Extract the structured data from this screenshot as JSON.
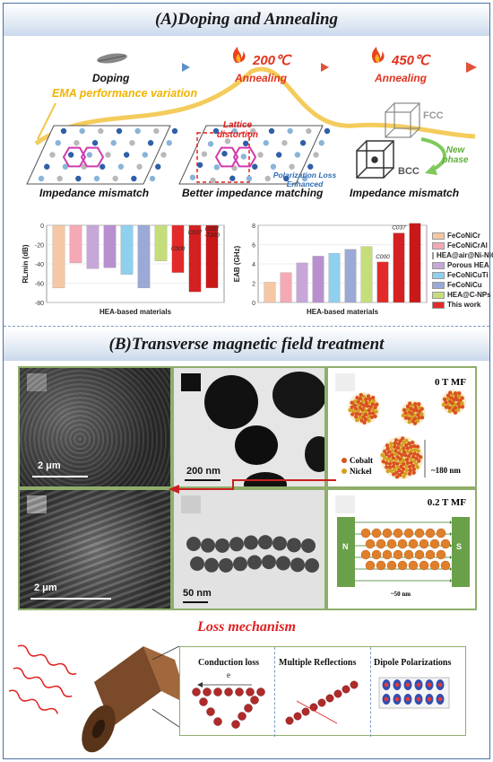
{
  "section_a": {
    "title": "(A)Doping and Annealing",
    "stages": [
      {
        "label": "Doping"
      },
      {
        "label": "Annealing",
        "temperature": "200℃"
      },
      {
        "label": "Annealing",
        "temperature": "450℃"
      }
    ],
    "ema_label": "EMA performance variation",
    "lattice_distortion": "Lattice distortion",
    "polarization_label": "Polarization Loss Enhanced",
    "fcc_label": "FCC",
    "bcc_label": "BCC",
    "new_phase_label": "New phase",
    "captions": [
      "Impedance mismatch",
      "Better impedance matching",
      "Impedance mismatch"
    ]
  },
  "chart_data": [
    {
      "type": "bar",
      "ylabel": "RLmin (dB)",
      "xlabel": "HEA-based materials",
      "ylim": [
        -80,
        0
      ],
      "yticks": [
        "-80",
        "-60",
        "-40",
        "-20",
        "0"
      ],
      "values": [
        -65,
        -39,
        -45,
        -44,
        -51,
        -65,
        -37,
        -49,
        -69,
        -65
      ],
      "bar_labels": [
        "",
        "",
        "",
        "",
        "",
        "",
        "",
        "C000",
        "C037",
        "C037 -T200"
      ]
    },
    {
      "type": "bar",
      "ylabel": "EAB (GHz)",
      "xlabel": "HEA-based materials",
      "ylim": [
        0,
        8
      ],
      "yticks": [
        "0",
        "2",
        "4",
        "6",
        "8"
      ],
      "values": [
        2.1,
        3.1,
        4.1,
        4.8,
        5.1,
        5.5,
        5.8,
        4.2,
        7.2,
        8.2
      ],
      "bar_labels": [
        "",
        "",
        "",
        "",
        "",
        "",
        "",
        "C000",
        "C037",
        "C037 -T200"
      ]
    }
  ],
  "legend": [
    {
      "name": "FeCoNiCr",
      "color": "#f6c7a4"
    },
    {
      "name": "FeCoNiCrAl",
      "color": "#f4a9b4"
    },
    {
      "name": "HEA@air@Ni-NiO",
      "color": "#b5d98f"
    },
    {
      "name": "Porous HEA",
      "color": "#c7a6d9"
    },
    {
      "name": "FeCoNiCuTi",
      "color": "#8fd0ee"
    },
    {
      "name": "FeCoNiCu",
      "color": "#9aa9d6"
    },
    {
      "name": "HEA@C-NPs",
      "color": "#c5de7a"
    },
    {
      "name": "This work",
      "color": "#e32a2a"
    }
  ],
  "bar_colors": [
    "#f6c7a4",
    "#f4a9b4",
    "#c7a6d9",
    "#b98fd0",
    "#8fd0ee",
    "#9aa9d6",
    "#c5de7a",
    "#e32a2a",
    "#d42020",
    "#c81818"
  ],
  "section_b": {
    "title": "(B)Transverse magnetic field treatment",
    "sem_top_scale": "2 μm",
    "tem_top_scale": "200 nm",
    "sem_bottom_scale": "2 μm",
    "tem_bottom_scale": "50 nm",
    "field_0": "0 T MF",
    "field_02": "0.2 T MF",
    "cobalt_label": "Cobalt",
    "nickel_label": "Nickel",
    "size_top": "~180 nm",
    "size_bottom": "~50 nm",
    "pole_n": "N",
    "pole_s": "S"
  },
  "mechanism": {
    "title": "Loss mechanism",
    "items": [
      "Conduction loss",
      "Multiple Reflections",
      "Dipole Polarizations"
    ],
    "electron_label": "e"
  }
}
